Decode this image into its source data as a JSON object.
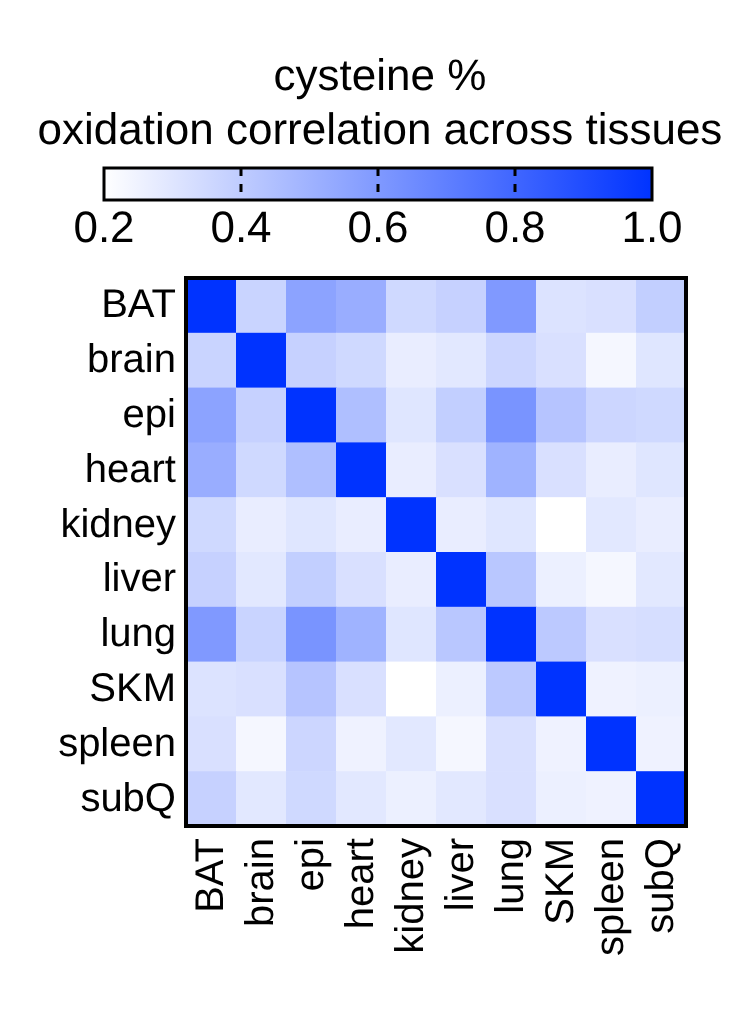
{
  "chart_data": {
    "type": "heatmap",
    "title": "cysteine % oxidation correlation across tissues",
    "categories": [
      "BAT",
      "brain",
      "epi",
      "heart",
      "kidney",
      "liver",
      "lung",
      "SKM",
      "spleen",
      "subQ"
    ],
    "y_categories": [
      "BAT",
      "brain",
      "epi",
      "heart",
      "kidney",
      "liver",
      "lung",
      "SKM",
      "spleen",
      "subQ"
    ],
    "cells": [
      [
        1,
        0.37,
        0.56,
        0.52,
        0.35,
        0.38,
        0.6,
        0.31,
        0.32,
        0.39
      ],
      [
        0.37,
        1,
        0.38,
        0.35,
        0.27,
        0.29,
        0.36,
        0.32,
        0.23,
        0.3
      ],
      [
        0.56,
        0.38,
        1,
        0.45,
        0.3,
        0.39,
        0.62,
        0.43,
        0.36,
        0.35
      ],
      [
        0.52,
        0.35,
        0.45,
        1,
        0.27,
        0.32,
        0.5,
        0.32,
        0.27,
        0.3
      ],
      [
        0.35,
        0.27,
        0.3,
        0.27,
        1,
        0.27,
        0.3,
        0.2,
        0.29,
        0.27
      ],
      [
        0.38,
        0.29,
        0.39,
        0.32,
        0.27,
        1,
        0.42,
        0.26,
        0.23,
        0.29
      ],
      [
        0.6,
        0.37,
        0.62,
        0.5,
        0.3,
        0.42,
        1,
        0.41,
        0.32,
        0.33
      ],
      [
        0.31,
        0.32,
        0.43,
        0.32,
        0.2,
        0.26,
        0.41,
        1,
        0.25,
        0.26
      ],
      [
        0.32,
        0.23,
        0.36,
        0.25,
        0.29,
        0.23,
        0.32,
        0.25,
        1,
        0.25
      ],
      [
        0.38,
        0.29,
        0.35,
        0.29,
        0.26,
        0.29,
        0.32,
        0.26,
        0.25,
        1
      ]
    ],
    "clim": [
      0.2,
      1.0
    ],
    "cticks": [
      {
        "value": 0.2,
        "label": "0.2"
      },
      {
        "value": 0.4,
        "label": "0.4"
      },
      {
        "value": 0.6,
        "label": "0.6"
      },
      {
        "value": 0.8,
        "label": "0.8"
      },
      {
        "value": 1.0,
        "label": "1.0"
      }
    ],
    "colors": [
      "#ffffff",
      "#0033ff"
    ]
  }
}
